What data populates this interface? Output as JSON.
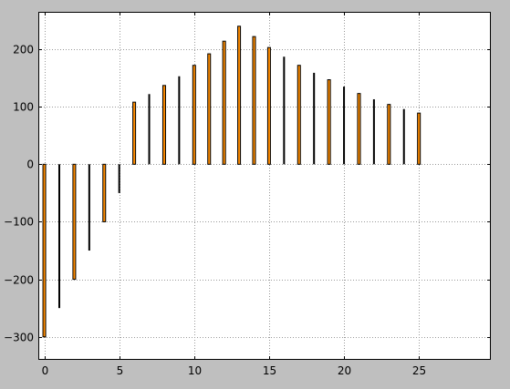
{
  "colors": {
    "figure_background": "#bfbfbf",
    "plot_background": "#ffffff",
    "bar_fill": "#ff8c00",
    "bar_edge": "#000000",
    "grid": "#999999",
    "axis": "#000000"
  },
  "chart_data": {
    "type": "bar",
    "title": "",
    "xlabel": "",
    "ylabel": "",
    "xlim": [
      -0.4,
      29.8
    ],
    "ylim": [
      -340,
      265
    ],
    "grid": true,
    "xticks": [
      0,
      5,
      10,
      15,
      20,
      25
    ],
    "xtick_labels": [
      "0",
      "5",
      "10",
      "15",
      "20",
      "25"
    ],
    "yticks": [
      -300,
      -200,
      -100,
      0,
      100,
      200
    ],
    "ytick_labels": [
      "−300",
      "−200",
      "−100",
      "0",
      "100",
      "200"
    ],
    "series": [
      {
        "style": "outlined-orange",
        "x": [
          0,
          2,
          4,
          6,
          8,
          10,
          11,
          12,
          13,
          14,
          15,
          17,
          19,
          21,
          23,
          25
        ],
        "values": [
          -300,
          -200,
          -100,
          108,
          137,
          172,
          192,
          214,
          240,
          222,
          203,
          172,
          147,
          123,
          104,
          89
        ]
      },
      {
        "style": "solid-black",
        "x": [
          1,
          3,
          5,
          7,
          9,
          16,
          18,
          20,
          22,
          24
        ],
        "values": [
          -250,
          -150,
          -50,
          122,
          153,
          187,
          159,
          135,
          113,
          96
        ]
      }
    ]
  }
}
